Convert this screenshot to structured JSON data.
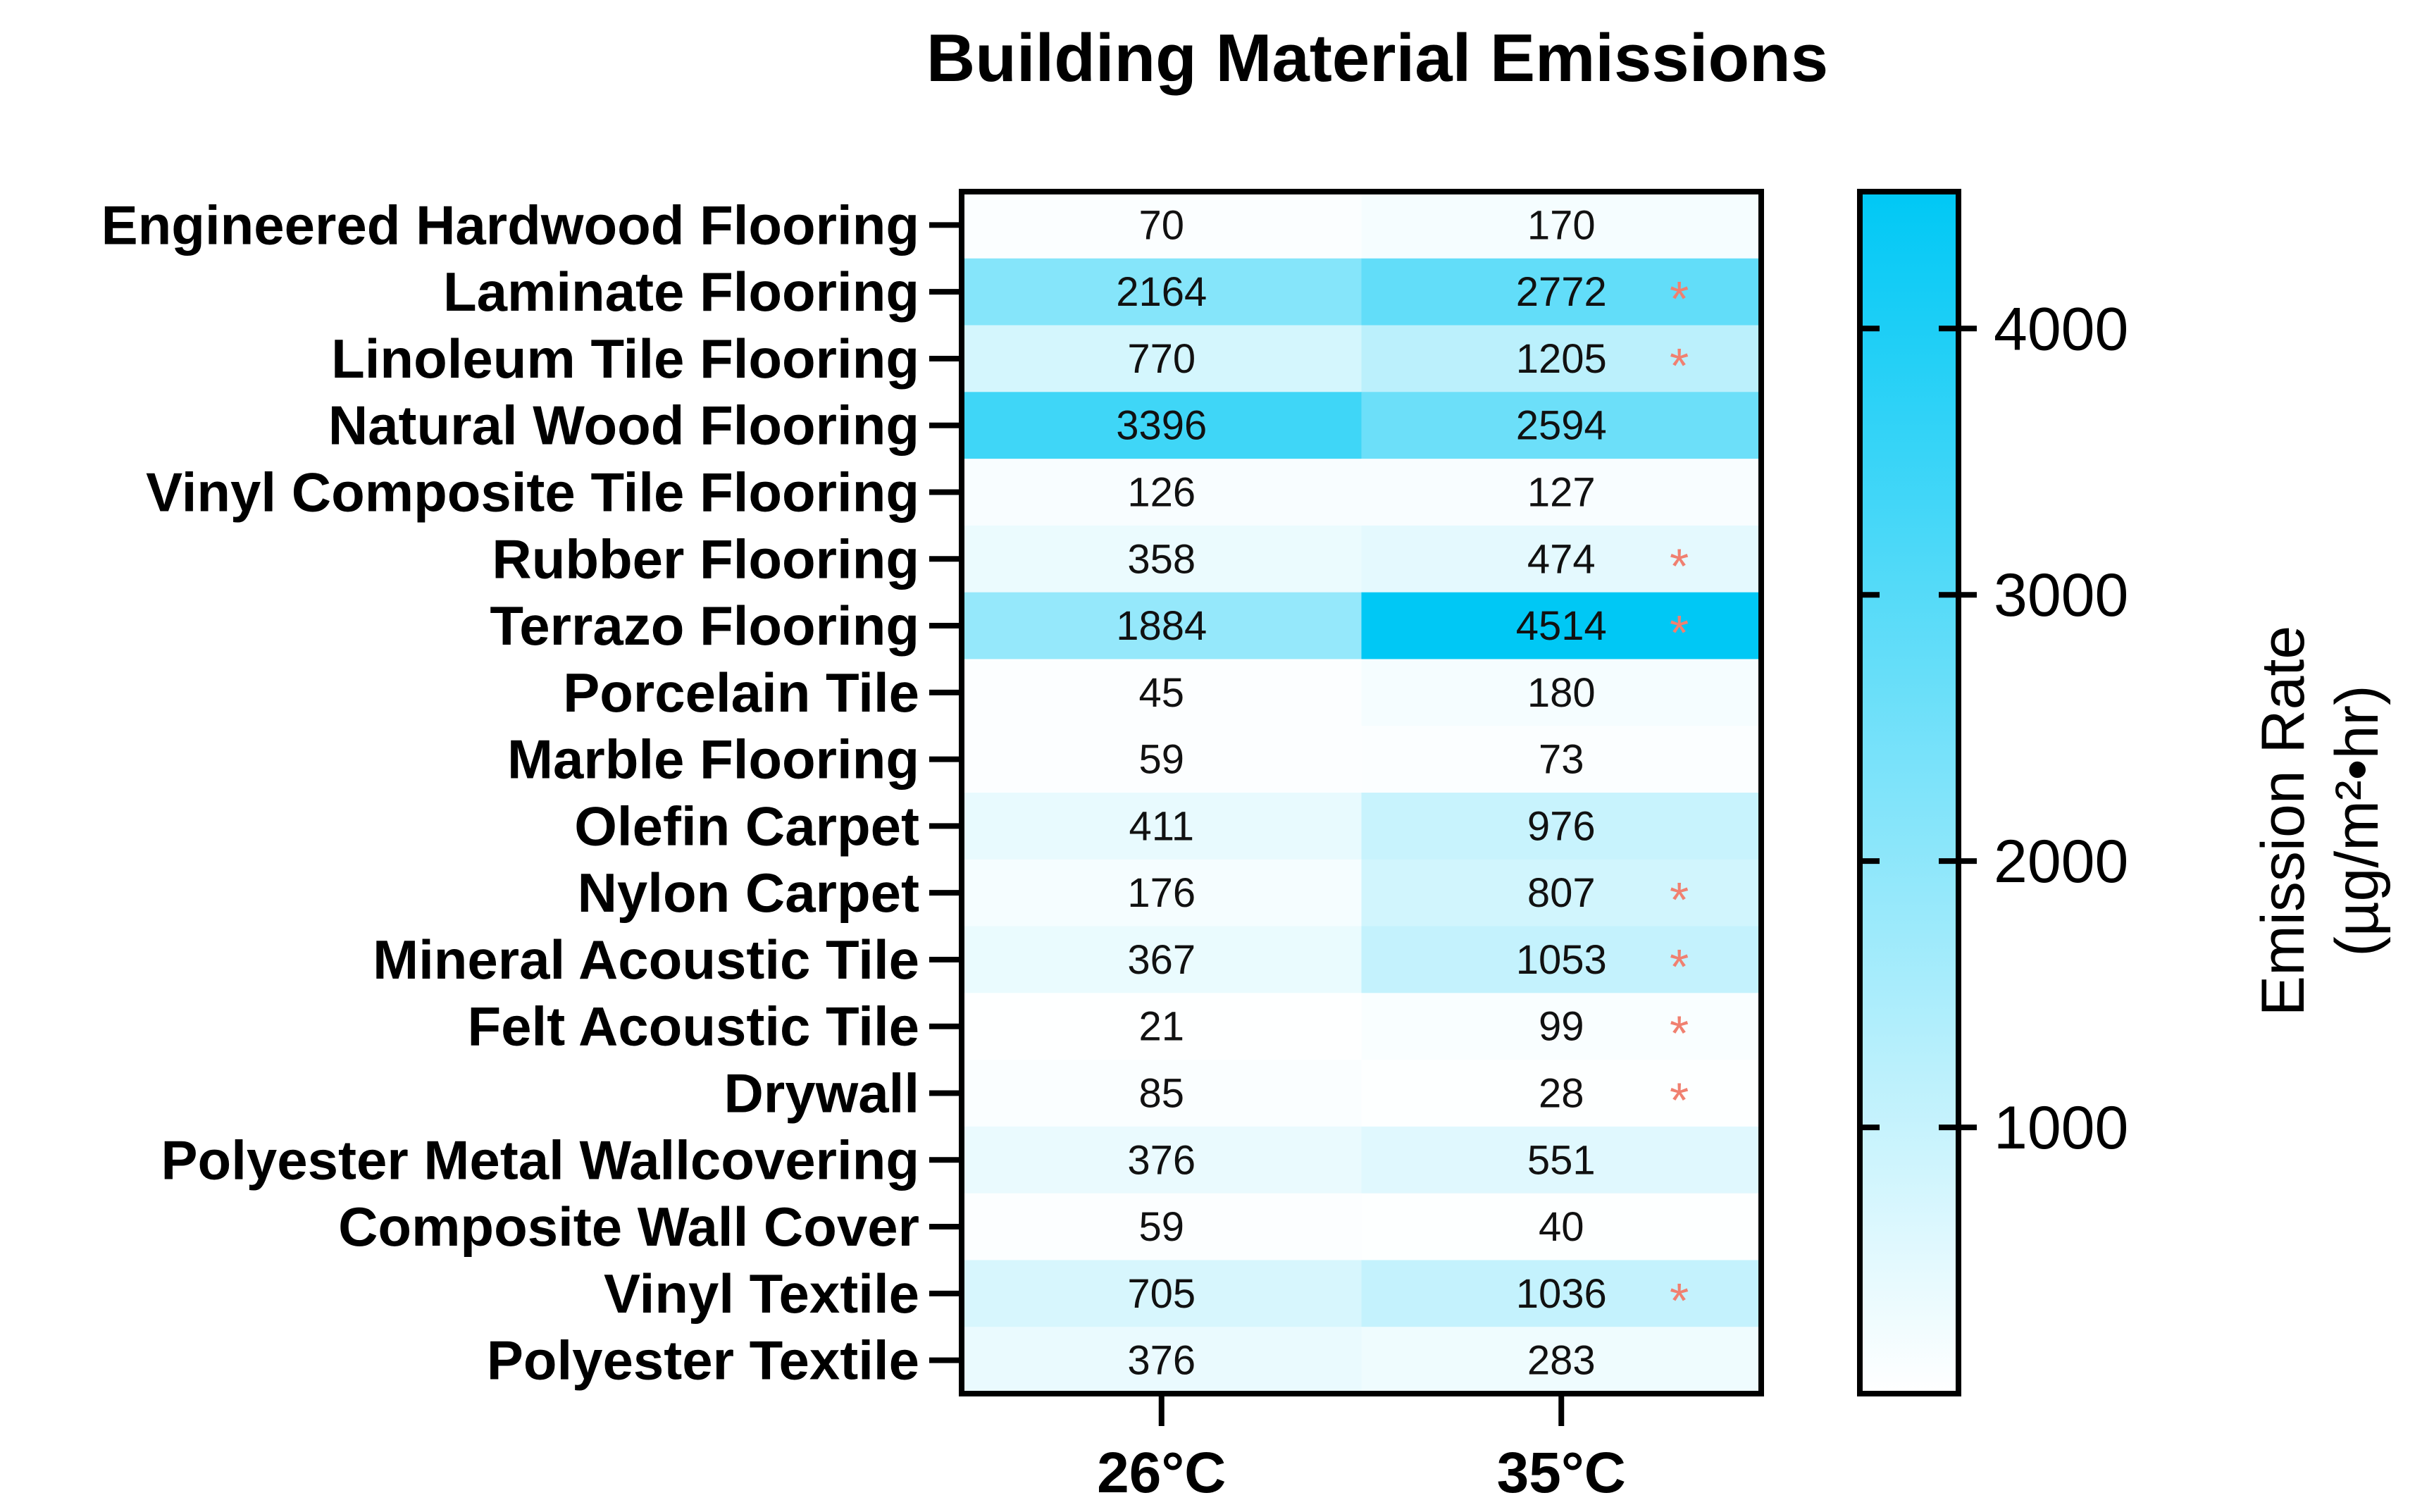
{
  "chart_data": {
    "type": "heatmap",
    "title": "Building Material Emissions",
    "columns": [
      "26°C",
      "35°C"
    ],
    "rows": [
      "Engineered Hardwood Flooring",
      "Laminate Flooring",
      "Linoleum Tile Flooring",
      "Natural Wood Flooring",
      "Vinyl Composite Tile Flooring",
      "Rubber Flooring",
      "Terrazo Flooring",
      "Porcelain Tile",
      "Marble Flooring",
      "Olefin Carpet",
      "Nylon Carpet",
      "Mineral Acoustic Tile",
      "Felt Acoustic Tile",
      "Drywall",
      "Polyester Metal Wallcovering",
      "Composite Wall Cover",
      "Vinyl Textile",
      "Polyester Textile"
    ],
    "values": [
      [
        70,
        170
      ],
      [
        2164,
        2772
      ],
      [
        770,
        1205
      ],
      [
        3396,
        2594
      ],
      [
        126,
        127
      ],
      [
        358,
        474
      ],
      [
        1884,
        4514
      ],
      [
        45,
        180
      ],
      [
        59,
        73
      ],
      [
        411,
        976
      ],
      [
        176,
        807
      ],
      [
        367,
        1053
      ],
      [
        21,
        99
      ],
      [
        85,
        28
      ],
      [
        376,
        551
      ],
      [
        59,
        40
      ],
      [
        705,
        1036
      ],
      [
        376,
        283
      ]
    ],
    "significance_marker": "*",
    "significant_35C": [
      false,
      true,
      true,
      false,
      false,
      true,
      true,
      false,
      false,
      false,
      true,
      true,
      true,
      true,
      false,
      false,
      true,
      false
    ],
    "colorbar": {
      "label": "Emission Rate",
      "unit_label": "(µg/m²•hr)",
      "ticks": [
        1000,
        2000,
        3000,
        4000
      ],
      "range": [
        0,
        4514
      ],
      "color_min": "#ffffff",
      "color_max": "#00c8f5"
    },
    "marker_color": "#f08070",
    "grid": false,
    "legend": "right"
  }
}
